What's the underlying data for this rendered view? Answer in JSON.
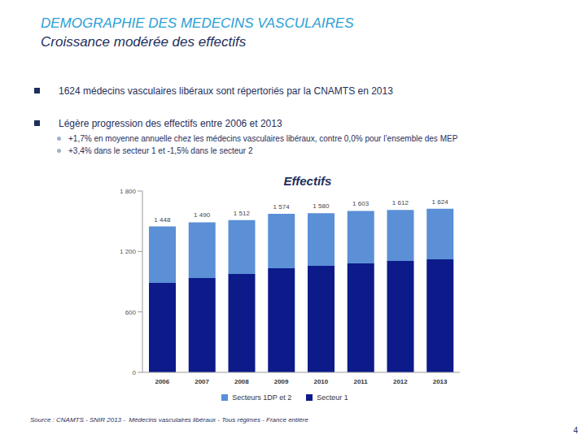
{
  "header": {
    "title": "DEMOGRAPHIE DES MEDECINS VASCULAIRES",
    "subtitle": "Croissance modérée des effectifs"
  },
  "bullets": [
    {
      "text": "1624 médecins vasculaires libéraux sont répertoriés par la CNAMTS en 2013"
    },
    {
      "text": "Légère progression des effectifs entre 2006 et 2013",
      "sub": [
        "+1,7% en moyenne annuelle chez les médecins vasculaires libéraux, contre 0,0% pour l’ensemble des MEP",
        "+3,4% dans le secteur 1 et -1,5% dans le secteur 2"
      ]
    }
  ],
  "chart_data": {
    "type": "bar",
    "title": "Effectifs",
    "categories": [
      "2006",
      "2007",
      "2008",
      "2009",
      "2010",
      "2011",
      "2012",
      "2013"
    ],
    "series": [
      {
        "name": "Secteurs 1DP et 2",
        "color": "#5b8fd6",
        "values": [
          560,
          554,
          536,
          541,
          523,
          522,
          506,
          502
        ]
      },
      {
        "name": "Secteur 1",
        "color": "#0c1a8a",
        "values": [
          888,
          936,
          976,
          1033,
          1057,
          1081,
          1106,
          1122
        ]
      }
    ],
    "stacked": true,
    "totals": [
      1448,
      1490,
      1512,
      1574,
      1580,
      1603,
      1612,
      1624
    ],
    "total_labels": [
      "1 448",
      "1 490",
      "1 512",
      "1 574",
      "1 580",
      "1 603",
      "1 612",
      "1 624"
    ],
    "ylim": [
      0,
      1800
    ],
    "yticks": [
      0,
      600,
      {
        "value": 1200,
        "label": "1 200"
      },
      {
        "value": 1800,
        "label": "1 800"
      }
    ],
    "grid": false,
    "legend": "bottom"
  },
  "source": "Source : CNAMTS - SNIR 2013 -  Médecins vasculaires libéraux - Tous régimes - France entière",
  "page": "4"
}
